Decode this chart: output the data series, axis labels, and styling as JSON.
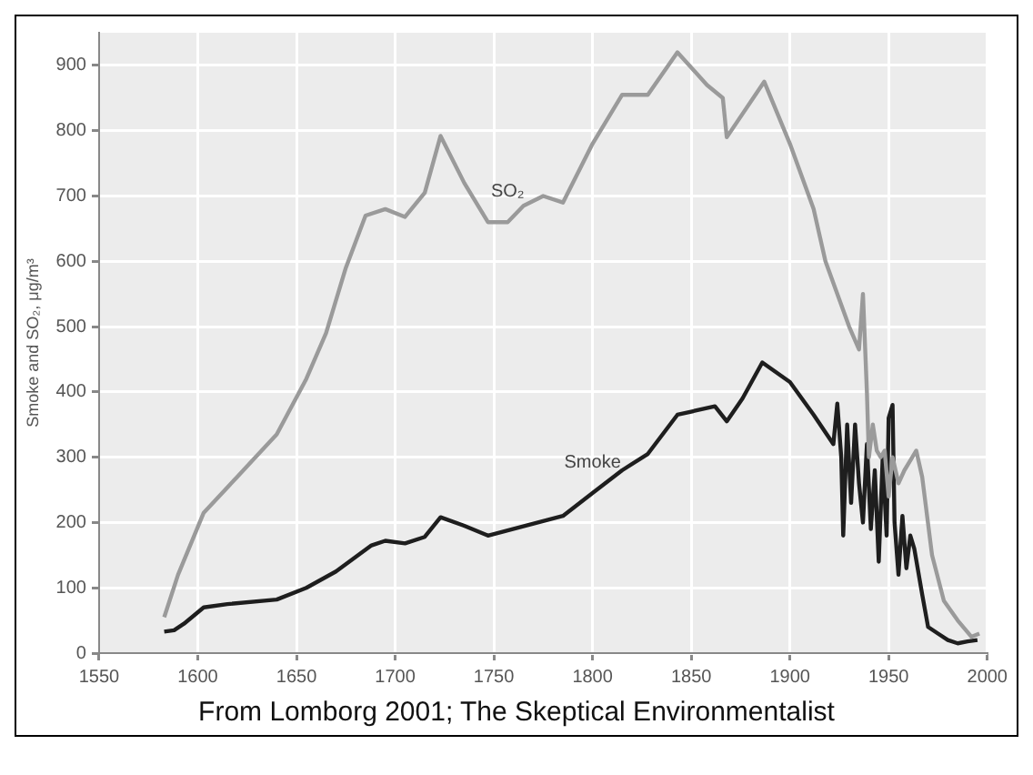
{
  "chart_data": {
    "type": "line",
    "ylabel": "Smoke and SO₂, μg/m³",
    "xlim": [
      1550,
      2000
    ],
    "xticks": [
      1550,
      1600,
      1650,
      1700,
      1750,
      1800,
      1850,
      1900,
      1950,
      2000
    ],
    "ylim": [
      0,
      950
    ],
    "yticks": [
      0,
      100,
      200,
      300,
      400,
      500,
      600,
      700,
      800,
      900
    ],
    "grid": true,
    "legend": false,
    "marker": "none",
    "line_style": "solid",
    "annotations": [
      "From Lomborg 2001; The Skeptical Environmentalist"
    ],
    "series": [
      {
        "name": "SO₂",
        "color": "#9a9a9a",
        "x": [
          1583,
          1590,
          1603,
          1620,
          1640,
          1655,
          1665,
          1675,
          1685,
          1695,
          1705,
          1715,
          1723,
          1735,
          1747,
          1757,
          1765,
          1775,
          1785,
          1800,
          1815,
          1828,
          1843,
          1858,
          1866,
          1868,
          1887,
          1900,
          1912,
          1918,
          1930,
          1935,
          1937,
          1939,
          1940,
          1942,
          1944,
          1946,
          1948,
          1950,
          1952,
          1955,
          1958,
          1962,
          1964,
          1967,
          1972,
          1978,
          1985,
          1992,
          1996
        ],
        "values": [
          55,
          120,
          215,
          270,
          335,
          420,
          490,
          590,
          670,
          680,
          668,
          705,
          792,
          720,
          660,
          660,
          685,
          700,
          690,
          780,
          855,
          855,
          920,
          870,
          850,
          790,
          875,
          780,
          680,
          600,
          500,
          465,
          550,
          400,
          300,
          350,
          310,
          300,
          310,
          240,
          300,
          260,
          280,
          300,
          310,
          270,
          150,
          80,
          50,
          25,
          30
        ]
      },
      {
        "name": "Smoke",
        "color": "#1e1e1e",
        "x": [
          1583,
          1588,
          1593,
          1603,
          1615,
          1640,
          1655,
          1670,
          1688,
          1695,
          1705,
          1715,
          1723,
          1735,
          1747,
          1757,
          1785,
          1800,
          1815,
          1828,
          1843,
          1862,
          1868,
          1876,
          1886,
          1900,
          1912,
          1922,
          1924,
          1926,
          1927,
          1929,
          1931,
          1933,
          1935,
          1937,
          1939,
          1941,
          1943,
          1945,
          1947,
          1949,
          1950,
          1952,
          1953,
          1955,
          1957,
          1959,
          1961,
          1963,
          1967,
          1970,
          1975,
          1980,
          1985,
          1990,
          1995
        ],
        "values": [
          33,
          35,
          45,
          70,
          75,
          82,
          100,
          125,
          165,
          172,
          168,
          178,
          208,
          195,
          180,
          188,
          210,
          245,
          280,
          305,
          365,
          378,
          355,
          390,
          445,
          415,
          365,
          320,
          382,
          300,
          180,
          350,
          230,
          350,
          260,
          200,
          320,
          190,
          280,
          140,
          300,
          180,
          360,
          380,
          200,
          120,
          210,
          130,
          180,
          160,
          90,
          40,
          30,
          20,
          15,
          18,
          20
        ]
      }
    ]
  }
}
